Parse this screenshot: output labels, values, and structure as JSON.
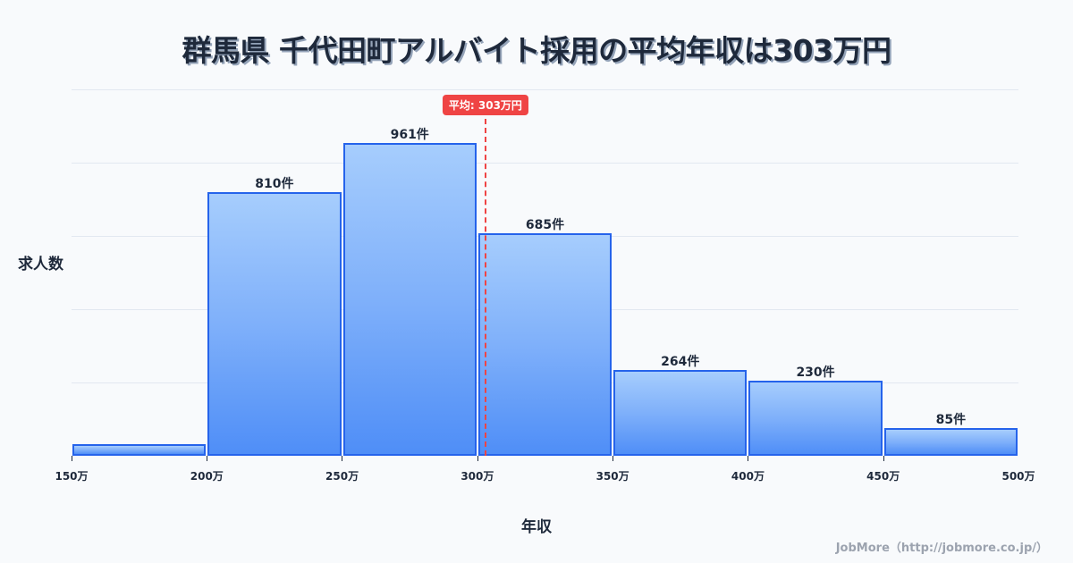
{
  "title": "群馬県 千代田町アルバイト採用の平均年収は303万円",
  "axes": {
    "y_label": "求人数",
    "x_label": "年収"
  },
  "mean": {
    "label": "平均: 303万円",
    "value": 303,
    "color": "#ef4444"
  },
  "credit": "JobMore（http://jobmore.co.jp/）",
  "colors": {
    "bar_top": "#a6cdfd",
    "bar_bottom": "#4f8ef7",
    "bar_border": "#2563eb",
    "background": "#f8fafc",
    "text": "#1e293b"
  },
  "chart_data": {
    "type": "bar",
    "title": "群馬県 千代田町アルバイト採用の平均年収は303万円",
    "xlabel": "年収",
    "ylabel": "求人数",
    "categories": [
      "150万-200万",
      "200万-250万",
      "250万-300万",
      "300万-350万",
      "350万-400万",
      "400万-450万",
      "450万-500万"
    ],
    "bin_edges": [
      150,
      200,
      250,
      300,
      350,
      400,
      450,
      500
    ],
    "values": [
      35,
      810,
      961,
      685,
      264,
      230,
      85
    ],
    "value_labels": [
      "",
      "810件",
      "961件",
      "685件",
      "264件",
      "230件",
      "85件"
    ],
    "x_tick_labels": [
      "150万",
      "200万",
      "250万",
      "300万",
      "350万",
      "400万",
      "450万",
      "500万"
    ],
    "ylim": [
      0,
      1127
    ],
    "grid": true,
    "legend": null,
    "annotations": [
      {
        "type": "vline",
        "x": 303,
        "label": "平均: 303万円",
        "style": "dashed",
        "color": "#ef4444"
      }
    ]
  }
}
